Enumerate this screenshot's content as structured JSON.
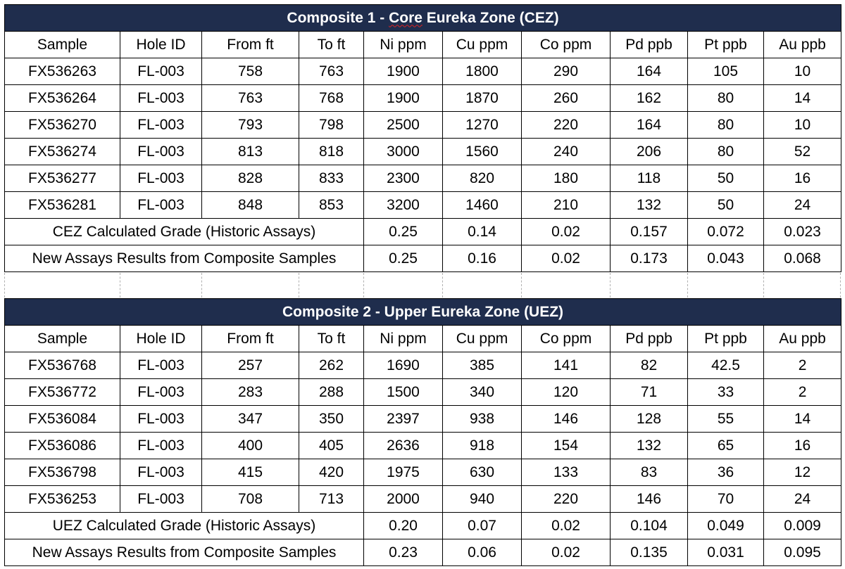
{
  "columns": [
    "Sample",
    "Hole ID",
    "From ft",
    "To ft",
    "Ni ppm",
    "Cu ppm",
    "Co ppm",
    "Pd ppb",
    "Pt ppb",
    "Au ppb"
  ],
  "composite1": {
    "title_pre": "Composite 1 - ",
    "title_word": "Core",
    "title_post": " Eureka Zone (CEZ)",
    "rows": [
      [
        "FX536263",
        "FL-003",
        "758",
        "763",
        "1900",
        "1800",
        "290",
        "164",
        "105",
        "10"
      ],
      [
        "FX536264",
        "FL-003",
        "763",
        "768",
        "1900",
        "1870",
        "260",
        "162",
        "80",
        "14"
      ],
      [
        "FX536270",
        "FL-003",
        "793",
        "798",
        "2500",
        "1270",
        "220",
        "164",
        "80",
        "10"
      ],
      [
        "FX536274",
        "FL-003",
        "813",
        "818",
        "3000",
        "1560",
        "240",
        "206",
        "80",
        "52"
      ],
      [
        "FX536277",
        "FL-003",
        "828",
        "833",
        "2300",
        "820",
        "180",
        "118",
        "50",
        "16"
      ],
      [
        "FX536281",
        "FL-003",
        "848",
        "853",
        "3200",
        "1460",
        "210",
        "132",
        "50",
        "24"
      ]
    ],
    "calc_label": "CEZ Calculated Grade (Historic Assays)",
    "calc_values": [
      "0.25",
      "0.14",
      "0.02",
      "0.157",
      "0.072",
      "0.023"
    ],
    "new_label": "New Assays Results from Composite Samples",
    "new_values": [
      "0.25",
      "0.16",
      "0.02",
      "0.173",
      "0.043",
      "0.068"
    ]
  },
  "composite2": {
    "title": "Composite 2 - Upper Eureka Zone (UEZ)",
    "rows": [
      [
        "FX536768",
        "FL-003",
        "257",
        "262",
        "1690",
        "385",
        "141",
        "82",
        "42.5",
        "2"
      ],
      [
        "FX536772",
        "FL-003",
        "283",
        "288",
        "1500",
        "340",
        "120",
        "71",
        "33",
        "2"
      ],
      [
        "FX536084",
        "FL-003",
        "347",
        "350",
        "2397",
        "938",
        "146",
        "128",
        "55",
        "14"
      ],
      [
        "FX536086",
        "FL-003",
        "400",
        "405",
        "2636",
        "918",
        "154",
        "132",
        "65",
        "16"
      ],
      [
        "FX536798",
        "FL-003",
        "415",
        "420",
        "1975",
        "630",
        "133",
        "83",
        "36",
        "12"
      ],
      [
        "FX536253",
        "FL-003",
        "708",
        "713",
        "2000",
        "940",
        "220",
        "146",
        "70",
        "24"
      ]
    ],
    "calc_label": "UEZ Calculated Grade (Historic Assays)",
    "calc_values": [
      "0.20",
      "0.07",
      "0.02",
      "0.104",
      "0.049",
      "0.009"
    ],
    "new_label": "New Assays Results from Composite Samples",
    "new_values": [
      "0.23",
      "0.06",
      "0.02",
      "0.135",
      "0.031",
      "0.095"
    ]
  }
}
